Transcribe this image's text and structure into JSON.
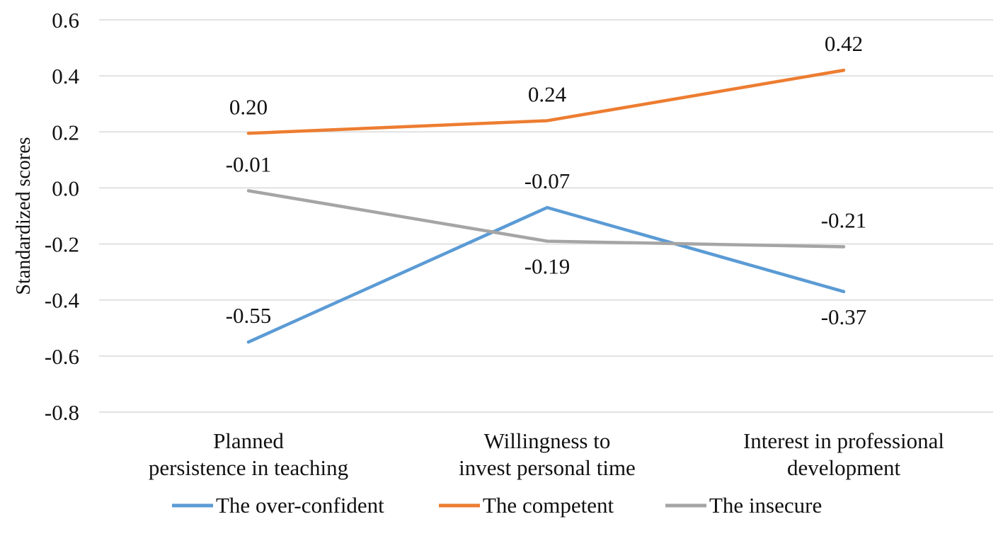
{
  "chart_data": {
    "type": "line",
    "title": "",
    "xlabel": "",
    "ylabel": "Standardized scores",
    "ylim": [
      -0.8,
      0.6
    ],
    "yticks": [
      0.6,
      0.4,
      0.2,
      0.0,
      -0.2,
      -0.4,
      -0.6,
      -0.8
    ],
    "ytick_labels": [
      "0.6",
      "0.4",
      "0.2",
      "0.0",
      "-0.2",
      "-0.4",
      "-0.6",
      "-0.8"
    ],
    "grid": true,
    "legend_position": "bottom",
    "categories": [
      [
        "Planned",
        "persistence in teaching"
      ],
      [
        "Willingness to",
        "invest personal time"
      ],
      [
        "Interest in professional",
        "development"
      ]
    ],
    "series": [
      {
        "name": "The over-confident",
        "color": "#5b9bd5",
        "values": [
          -0.55,
          -0.07,
          -0.37
        ],
        "labels": [
          "-0.55",
          "-0.07",
          "-0.37"
        ],
        "label_positions": [
          "above",
          "above",
          "below"
        ]
      },
      {
        "name": "The competent",
        "color": "#ed7d31",
        "values": [
          0.195,
          0.24,
          0.42
        ],
        "labels": [
          "0.20",
          "0.24",
          "0.42"
        ],
        "label_positions": [
          "above",
          "above",
          "above"
        ]
      },
      {
        "name": "The insecure",
        "color": "#a5a5a5",
        "values": [
          -0.01,
          -0.19,
          -0.21
        ],
        "labels": [
          "-0.01",
          "-0.19",
          "-0.21"
        ],
        "label_positions": [
          "above",
          "below",
          "above"
        ]
      }
    ]
  }
}
